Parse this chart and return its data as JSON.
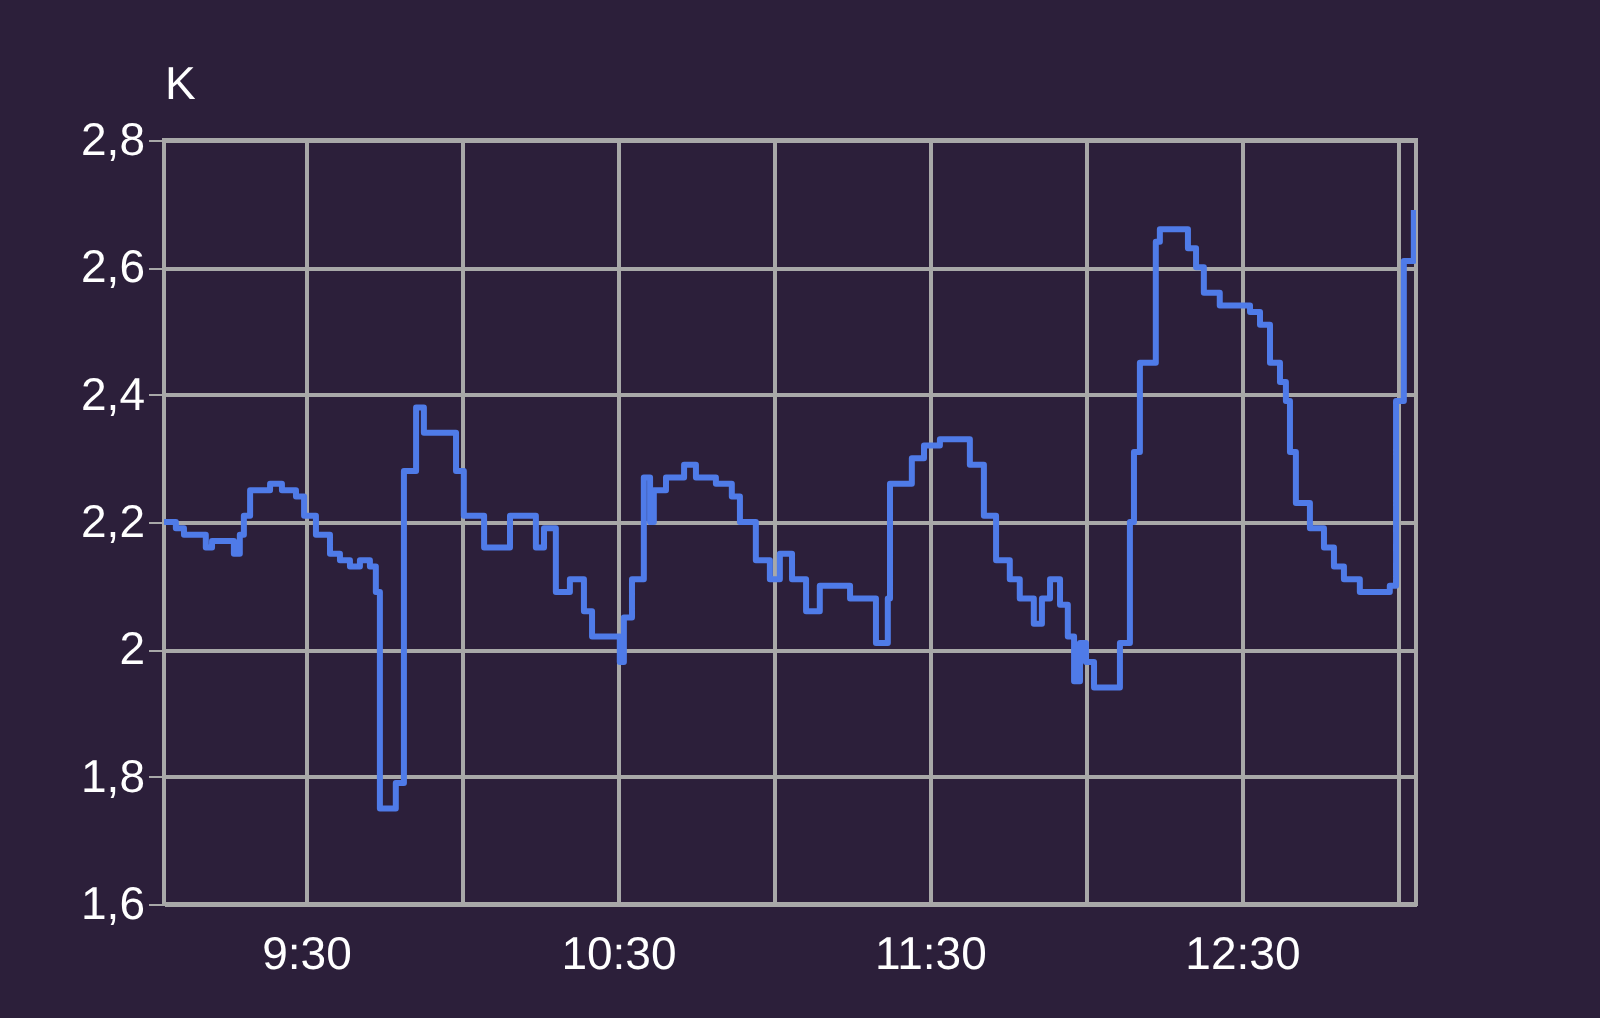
{
  "chart_data": {
    "type": "step",
    "ylabel": "K",
    "x": [
      9.045,
      9.083,
      9.109,
      9.179,
      9.199,
      9.269,
      9.288,
      9.301,
      9.321,
      9.385,
      9.423,
      9.468,
      9.494,
      9.532,
      9.577,
      9.609,
      9.641,
      9.673,
      9.705,
      9.724,
      9.737,
      9.788,
      9.814,
      9.853,
      9.878,
      9.981,
      10.006,
      10.071,
      10.154,
      10.237,
      10.263,
      10.301,
      10.346,
      10.391,
      10.417,
      10.506,
      10.519,
      10.545,
      10.583,
      10.603,
      10.615,
      10.654,
      10.712,
      10.75,
      10.814,
      10.865,
      10.891,
      10.942,
      10.987,
      11.019,
      11.058,
      11.103,
      11.147,
      11.244,
      11.327,
      11.365,
      11.372,
      11.442,
      11.481,
      11.532,
      11.628,
      11.673,
      11.712,
      11.756,
      11.788,
      11.833,
      11.859,
      11.885,
      11.917,
      11.942,
      11.962,
      11.981,
      12.0,
      12.026,
      12.109,
      12.141,
      12.154,
      12.173,
      12.224,
      12.237,
      12.327,
      12.353,
      12.378,
      12.429,
      12.526,
      12.558,
      12.59,
      12.622,
      12.641,
      12.654,
      12.673,
      12.718,
      12.763,
      12.795,
      12.827,
      12.878,
      12.974,
      12.994,
      13.019,
      13.051
    ],
    "series": [
      {
        "color": "#4f7be8",
        "values": [
          2.2,
          2.19,
          2.18,
          2.16,
          2.17,
          2.15,
          2.18,
          2.21,
          2.25,
          2.26,
          2.25,
          2.24,
          2.21,
          2.18,
          2.15,
          2.14,
          2.13,
          2.14,
          2.13,
          2.09,
          1.75,
          1.79,
          2.28,
          2.38,
          2.34,
          2.28,
          2.21,
          2.16,
          2.21,
          2.16,
          2.19,
          2.09,
          2.11,
          2.06,
          2.02,
          1.98,
          2.05,
          2.11,
          2.27,
          2.2,
          2.25,
          2.27,
          2.29,
          2.27,
          2.26,
          2.24,
          2.2,
          2.14,
          2.11,
          2.15,
          2.11,
          2.06,
          2.1,
          2.08,
          2.01,
          2.08,
          2.26,
          2.3,
          2.32,
          2.33,
          2.29,
          2.21,
          2.14,
          2.11,
          2.08,
          2.04,
          2.08,
          2.11,
          2.07,
          2.02,
          1.95,
          2.01,
          1.98,
          1.94,
          2.01,
          2.2,
          2.31,
          2.45,
          2.64,
          2.66,
          2.63,
          2.6,
          2.56,
          2.54,
          2.53,
          2.51,
          2.45,
          2.42,
          2.39,
          2.31,
          2.23,
          2.19,
          2.16,
          2.13,
          2.11,
          2.09,
          2.1,
          2.39,
          2.61,
          2.69
        ]
      }
    ],
    "xlim": [
      9.045,
      13.058
    ],
    "xticks": [
      {
        "value": 9.5,
        "label": "9:30"
      },
      {
        "value": 10,
        "label": null
      },
      {
        "value": 10.5,
        "label": "10:30"
      },
      {
        "value": 11,
        "label": null
      },
      {
        "value": 11.5,
        "label": "11:30"
      },
      {
        "value": 12,
        "label": null
      },
      {
        "value": 12.5,
        "label": "12:30"
      },
      {
        "value": 13,
        "label": null
      }
    ],
    "ylim": [
      1.6,
      2.8
    ],
    "yticks": [
      {
        "value": 1.6,
        "label": "1,6"
      },
      {
        "value": 1.8,
        "label": "1,8"
      },
      2,
      {
        "value": 2.2,
        "label": "2,2"
      },
      {
        "value": 2.4,
        "label": "2,4"
      },
      {
        "value": 2.6,
        "label": "2,6"
      },
      {
        "value": 2.8,
        "label": "2,8"
      }
    ],
    "grid": true,
    "marker": "none",
    "line_style": "solid"
  }
}
